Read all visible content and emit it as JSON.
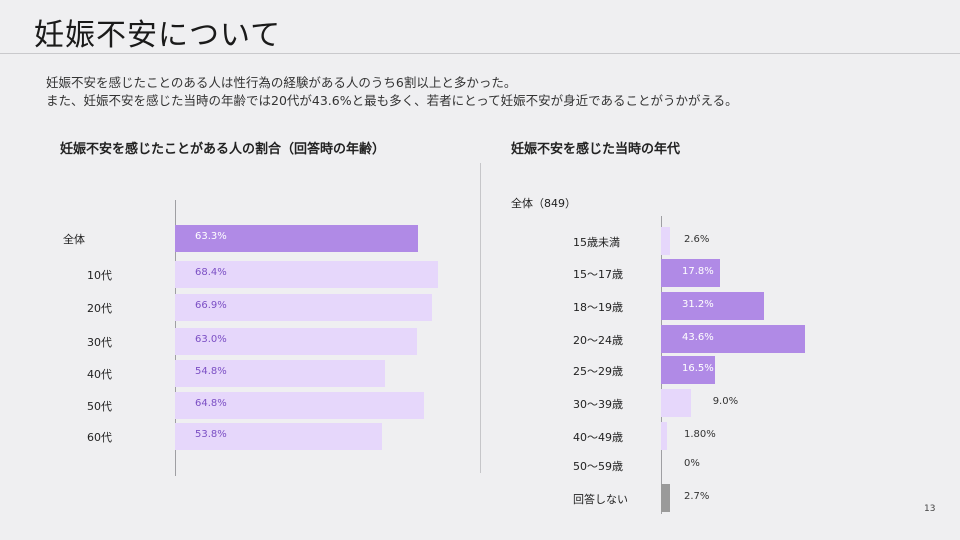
{
  "page": {
    "title": "妊娠不安について",
    "intro_lines": [
      "妊娠不安を感じたことのある人は性行為の経験がある人のうち6割以上と多かった。",
      "また、妊娠不安を感じた当時の年齢では20代が43.6%と最も多く、若者にとって妊娠不安が身近であることがうかがえる。"
    ],
    "page_number": "13"
  },
  "chart_data": [
    {
      "type": "bar",
      "orientation": "horizontal",
      "title": "妊娠不安を感じたことがある人の割合（回答時の年齢）",
      "categories": [
        "全体",
        "10代",
        "20代",
        "30代",
        "40代",
        "50代",
        "60代"
      ],
      "values": [
        63.3,
        68.4,
        66.9,
        63.0,
        54.8,
        64.8,
        53.8
      ],
      "value_labels": [
        "63.3%",
        "68.4%",
        "66.9%",
        "63.0%",
        "54.8%",
        "64.8%",
        "53.8%"
      ],
      "xlim": [
        0,
        100
      ],
      "highlight_index": 0,
      "colors": {
        "highlight": "#b08ae6",
        "normal": "#e6d7fb",
        "highlight_text": "#ffffff",
        "normal_text": "#7b4fc4"
      }
    },
    {
      "type": "bar",
      "orientation": "horizontal",
      "title": "妊娠不安を感じた当時の年代",
      "subtitle": "全体（849）",
      "categories": [
        "15歳未満",
        "15～17歳",
        "18～19歳",
        "20～24歳",
        "25～29歳",
        "30～39歳",
        "40～49歳",
        "50～59歳",
        "回答しない"
      ],
      "values": [
        2.6,
        17.8,
        31.2,
        43.6,
        16.5,
        9.0,
        1.8,
        0,
        2.7
      ],
      "value_labels": [
        "2.6%",
        "17.8%",
        "31.2%",
        "43.6%",
        "16.5%",
        "9.0%",
        "1.80%",
        "0%",
        "2.7%"
      ],
      "xlim": [
        0,
        100
      ],
      "highlight_indices": [
        1,
        2,
        3,
        4
      ],
      "colors": {
        "highlight": "#b08ae6",
        "normal": "#e6d7fb",
        "gray": "#9a9a9a",
        "highlight_text": "#ffffff",
        "outside_text": "#333333"
      }
    }
  ]
}
